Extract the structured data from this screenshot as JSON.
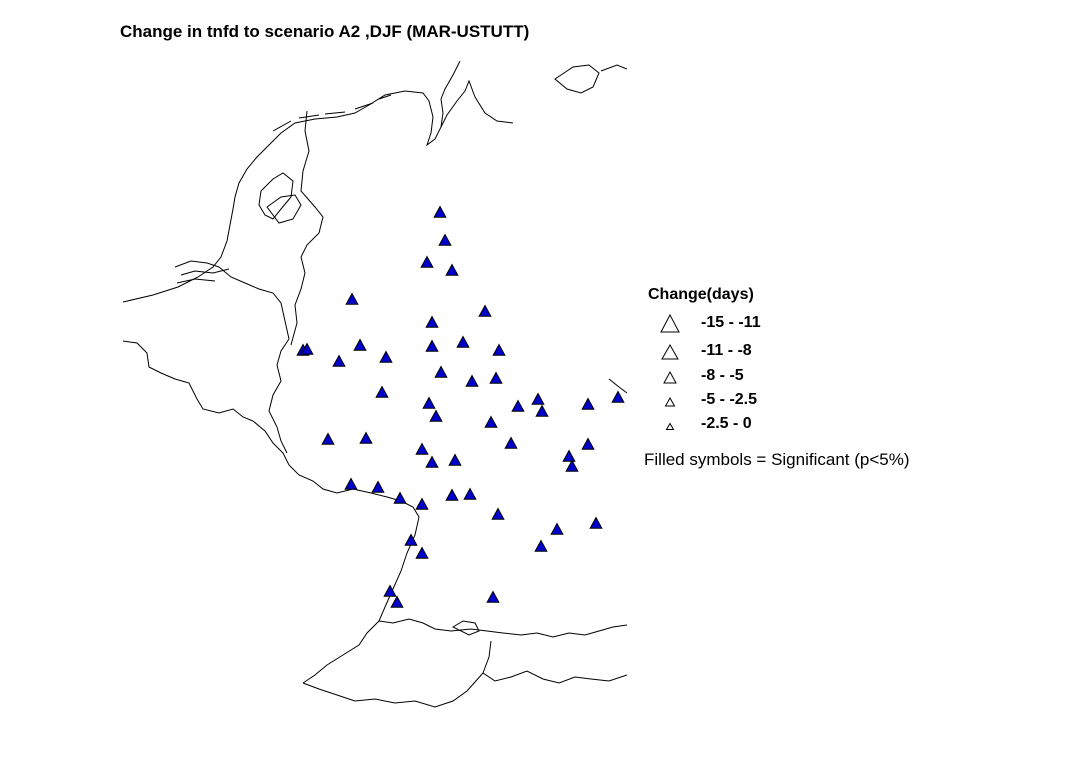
{
  "title": "Change in tnfd to scenario A2 ,DJF (MAR-USTUTT)",
  "legend": {
    "title": "Change(days)",
    "classes": [
      {
        "label": "-15 - -11",
        "size": "largest"
      },
      {
        "label": "-11 - -8",
        "size": "large"
      },
      {
        "label": "-8 - -5",
        "size": "medium"
      },
      {
        "label": "-5 - -2.5",
        "size": "small"
      },
      {
        "label": "-2.5 - 0",
        "size": "smallest"
      }
    ],
    "note": "Filled symbols = Significant (p<5%)"
  },
  "colors": {
    "significant_fill": "#0000cc",
    "outline": "#000000",
    "coastline": "#000000"
  },
  "map": {
    "type": "station-map",
    "region": "Netherlands, Belgium, Luxembourg, western Germany",
    "marker": "triangle",
    "station_count": 56,
    "all_stations_significant": true,
    "change_class_of_all_stations": "-11 - -8"
  }
}
